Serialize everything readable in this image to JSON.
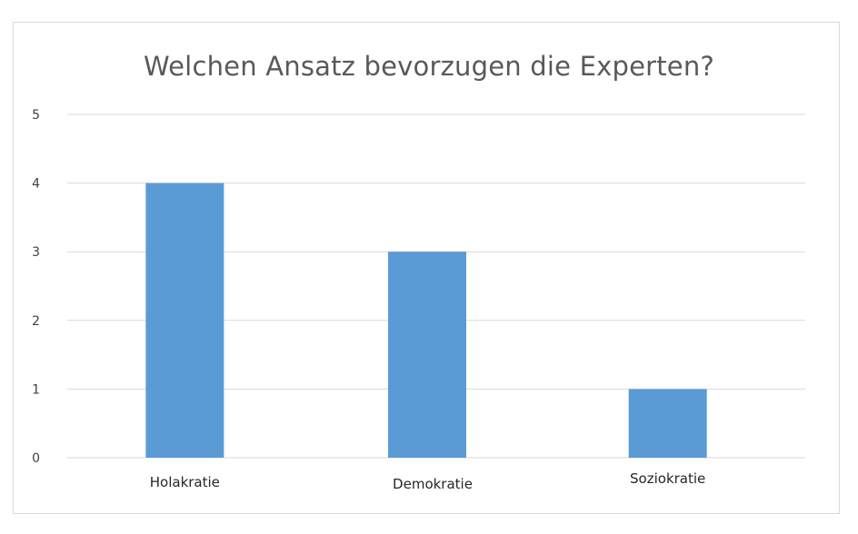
{
  "chart_data": {
    "type": "bar",
    "title": "Welchen Ansatz bevorzugen die Experten?",
    "categories": [
      "Holakratie",
      "Demokratie",
      "Soziokratie"
    ],
    "values": [
      4,
      3,
      1
    ],
    "ylim": [
      0,
      5
    ],
    "yticks": [
      0,
      1,
      2,
      3,
      4,
      5
    ],
    "grid": true,
    "legend": "none",
    "bar_color": "#5b9bd5",
    "grid_color": "#d9d9d9"
  }
}
